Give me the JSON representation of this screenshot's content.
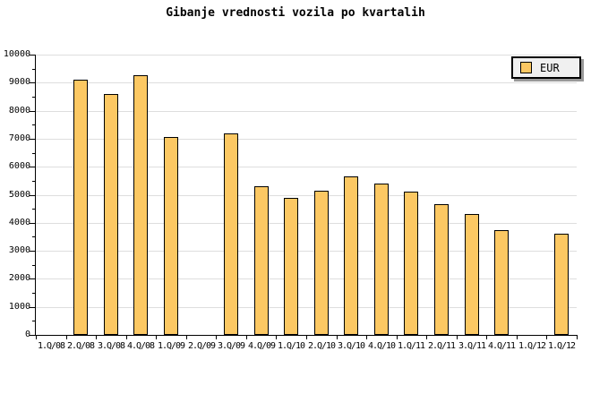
{
  "title": "Gibanje vrednosti vozila po kvartalih",
  "legend": {
    "label": "EUR"
  },
  "chart_data": {
    "type": "bar",
    "title": "Gibanje vrednosti vozila po kvartalih",
    "categories": [
      "1.Q/08",
      "2.Q/08",
      "3.Q/08",
      "4.Q/08",
      "1.Q/09",
      "2.Q/09",
      "3.Q/09",
      "4.Q/09",
      "1.Q/10",
      "2.Q/10",
      "3.Q/10",
      "4.Q/10",
      "1.Q/11",
      "2.Q/11",
      "3.Q/11",
      "4.Q/11",
      "1.Q/12",
      "1.Q/12"
    ],
    "series": [
      {
        "name": "EUR",
        "values": [
          null,
          9100,
          8600,
          9250,
          7050,
          null,
          7200,
          5300,
          4900,
          5150,
          5650,
          5400,
          5100,
          4650,
          4300,
          3750,
          null,
          3600
        ]
      }
    ],
    "xlabel": "",
    "ylabel": "",
    "ylim": [
      0,
      10000
    ],
    "ytick_major": 1000,
    "ytick_minor": 500,
    "grid": true,
    "legend_position": "top-right",
    "colors": {
      "bar_fill": "#FCC863",
      "bar_border": "#000000",
      "grid": "#DEDEDE",
      "axis": "#000000",
      "background": "#FFFFFF",
      "legend_bg": "#F0F0F0",
      "legend_border": "#000000",
      "legend_shadow": "#999999",
      "text": "#000000"
    }
  }
}
